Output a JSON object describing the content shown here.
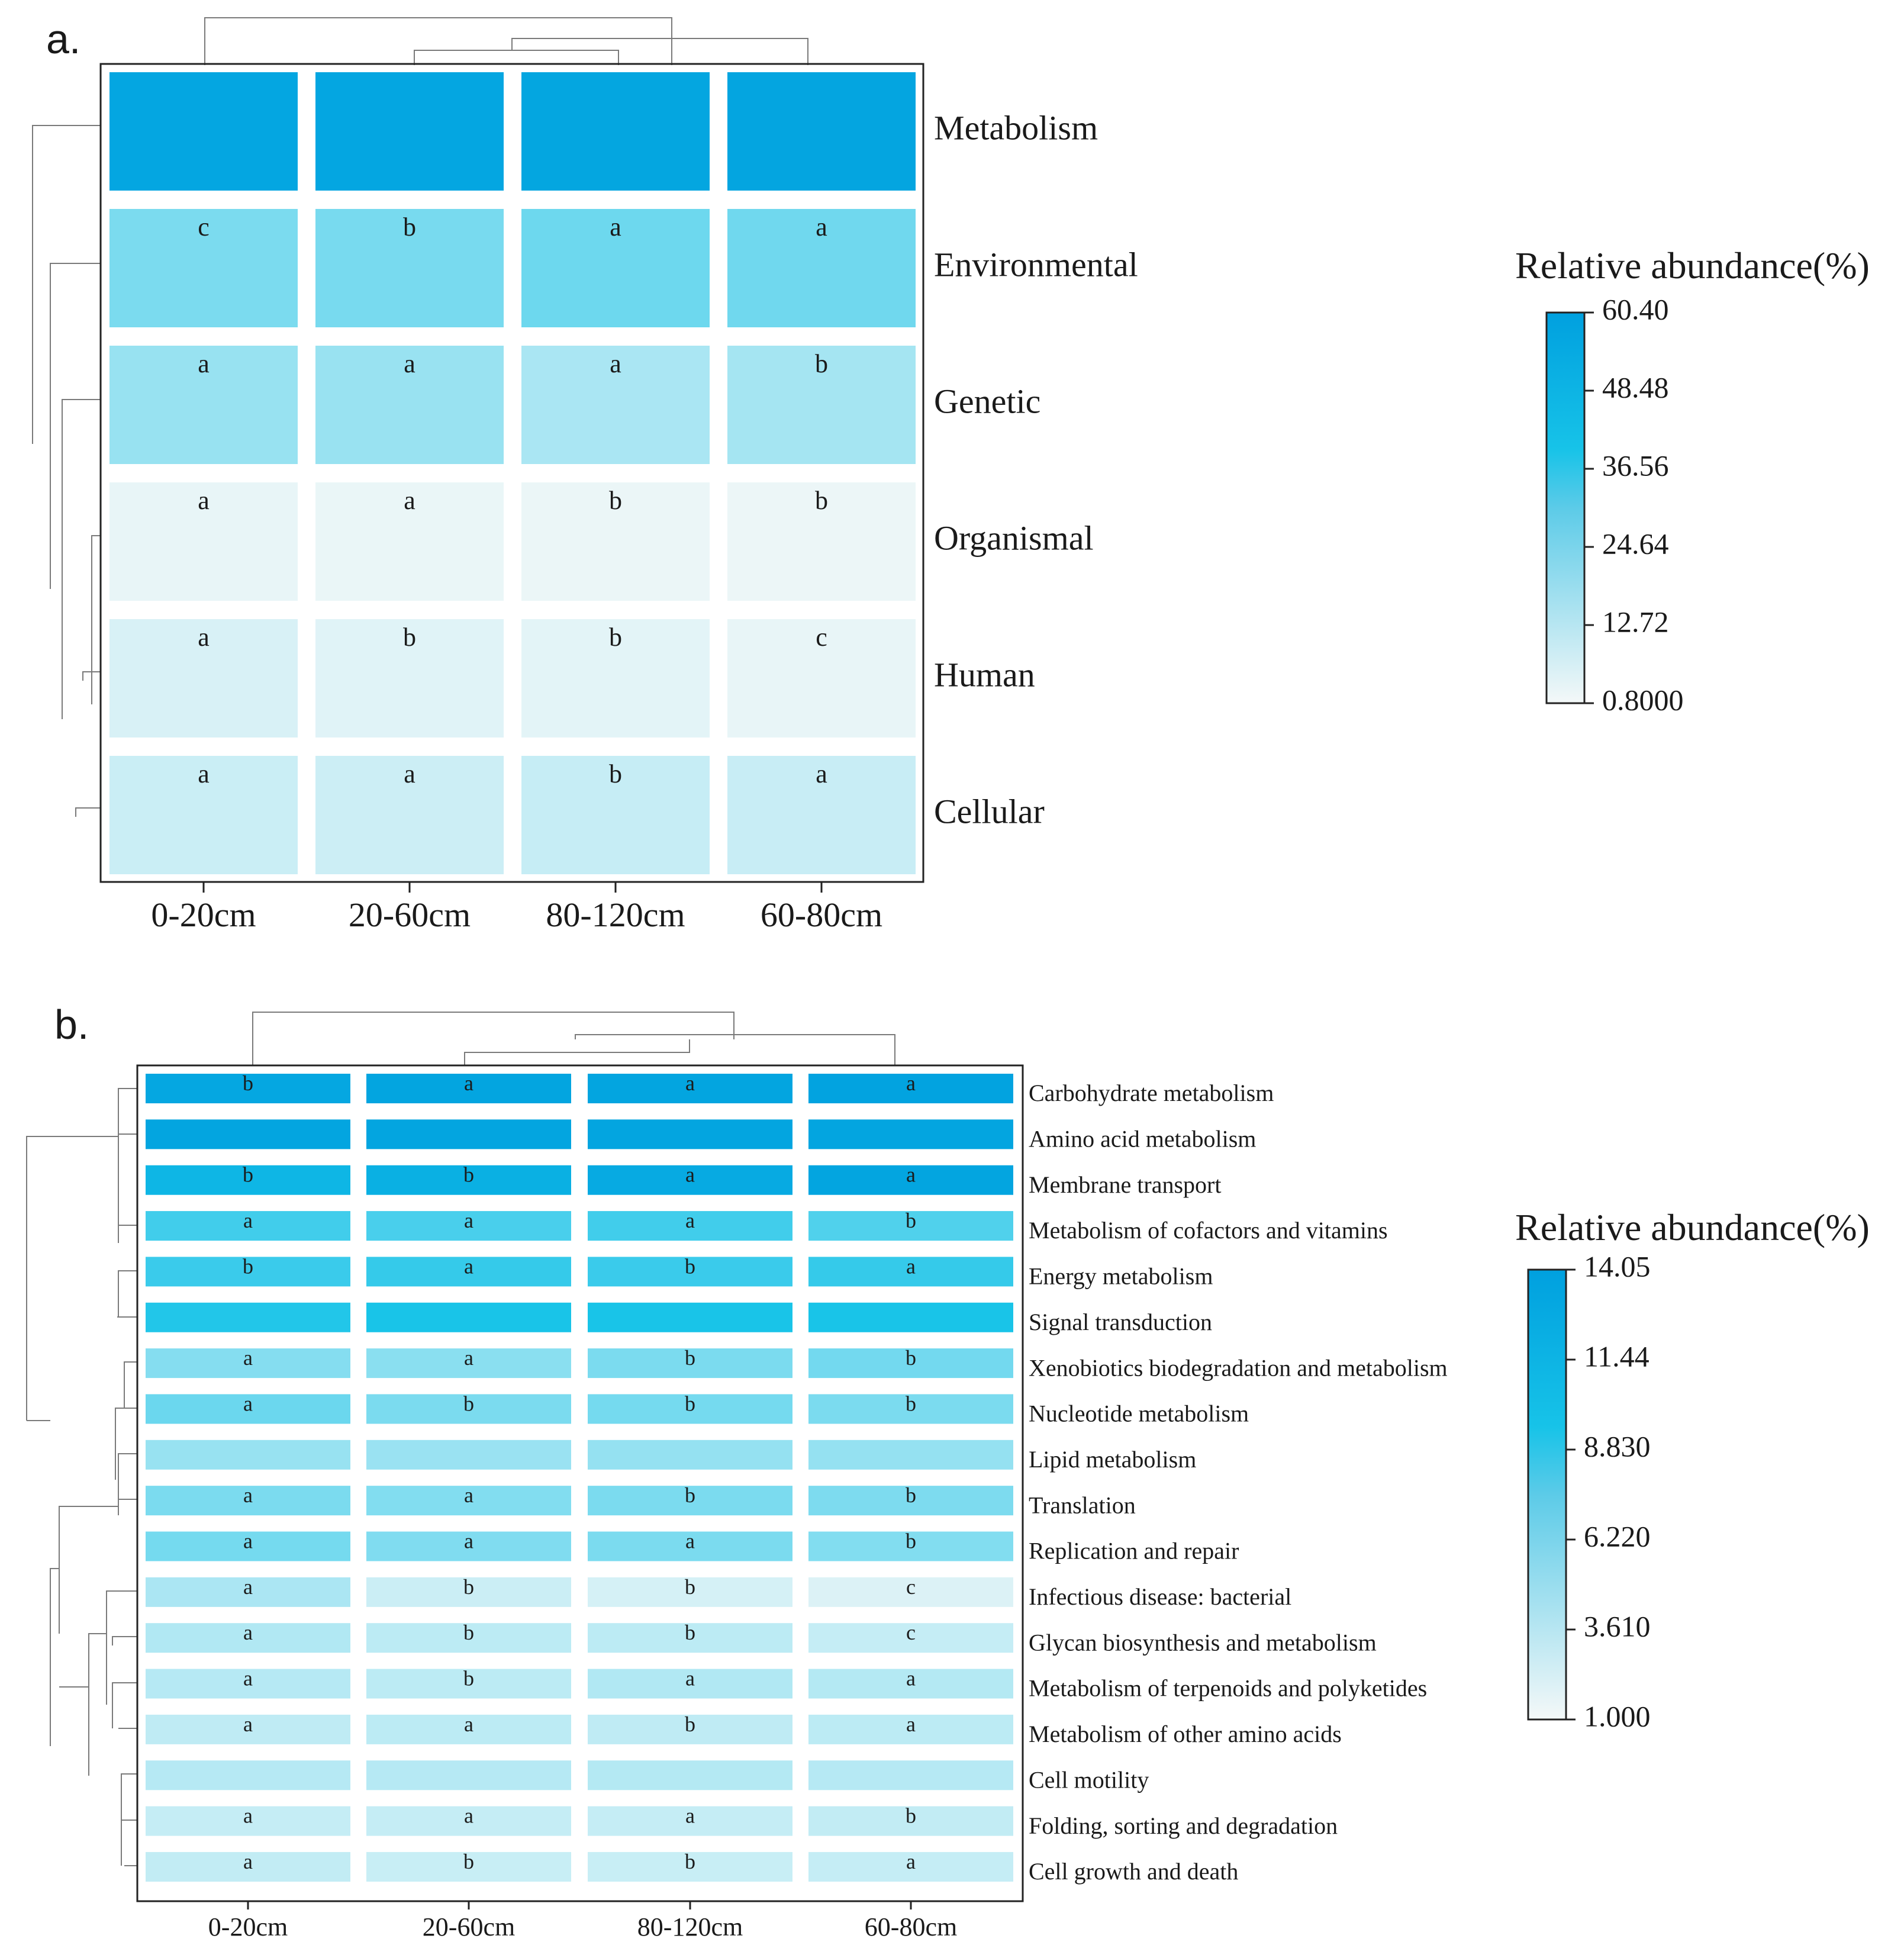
{
  "chart_data": [
    {
      "panel_label": "a.",
      "type": "heatmap",
      "columns": [
        "0-20cm",
        "20-60cm",
        "80-120cm",
        "60-80cm"
      ],
      "rows": [
        "Metabolism",
        "Environmental",
        "Genetic",
        "Organismal",
        "Human",
        "Cellular"
      ],
      "values": [
        [
          56.5,
          56.3,
          56.7,
          56.9
        ],
        [
          19.0,
          19.5,
          21.5,
          21.0
        ],
        [
          14.0,
          13.8,
          11.0,
          11.8
        ],
        [
          2.0,
          1.8,
          1.6,
          1.5
        ],
        [
          4.0,
          3.0,
          2.6,
          2.0
        ],
        [
          6.0,
          5.7,
          6.6,
          6.4
        ]
      ],
      "letters": [
        [
          "",
          "",
          "",
          ""
        ],
        [
          "c",
          "b",
          "a",
          "a"
        ],
        [
          "a",
          "a",
          "a",
          "b"
        ],
        [
          "a",
          "a",
          "b",
          "b"
        ],
        [
          "a",
          "b",
          "b",
          "c"
        ],
        [
          "a",
          "a",
          "b",
          "a"
        ]
      ],
      "colorbar": {
        "title": "Relative abundance(%)",
        "min": 0.8,
        "max": 60.4,
        "tick_labels": [
          "60.40",
          "48.48",
          "36.56",
          "24.64",
          "12.72",
          "0.8000"
        ]
      },
      "colors": {
        "high": "#00a0df",
        "mid": "#17c3e8",
        "low": "#f4f8f8"
      }
    },
    {
      "panel_label": "b.",
      "type": "heatmap",
      "columns": [
        "0-20cm",
        "20-60cm",
        "80-120cm",
        "60-80cm"
      ],
      "rows": [
        "Carbohydrate metabolism",
        "Amino acid metabolism",
        "Membrane transport",
        "Metabolism of cofactors and vitamins",
        "Energy metabolism",
        "Signal transduction",
        "Xenobiotics biodegradation and metabolism",
        "Nucleotide metabolism",
        "Lipid metabolism",
        "Translation",
        "Replication and repair",
        "Infectious disease: bacterial",
        "Glycan biosynthesis and metabolism",
        "Metabolism of terpenoids and polyketides",
        "Metabolism of other amino acids",
        "Cell motility",
        "Folding, sorting and degradation",
        "Cell growth and death"
      ],
      "values": [
        [
          13.0,
          13.3,
          13.4,
          13.6
        ],
        [
          13.3,
          13.3,
          13.3,
          13.3
        ],
        [
          11.0,
          11.8,
          12.6,
          13.4
        ],
        [
          7.3,
          7.0,
          7.3,
          6.7
        ],
        [
          7.6,
          7.8,
          7.6,
          7.8
        ],
        [
          8.6,
          9.0,
          9.0,
          9.0
        ],
        [
          4.6,
          4.4,
          5.0,
          5.3
        ],
        [
          5.6,
          5.0,
          5.2,
          5.0
        ],
        [
          3.9,
          3.8,
          4.0,
          4.0
        ],
        [
          5.0,
          4.7,
          5.0,
          4.9
        ],
        [
          5.2,
          4.8,
          5.0,
          4.7
        ],
        [
          3.2,
          2.1,
          1.8,
          1.6
        ],
        [
          3.0,
          2.6,
          2.6,
          2.3
        ],
        [
          2.8,
          2.6,
          3.0,
          2.9
        ],
        [
          2.5,
          2.6,
          2.5,
          2.6
        ],
        [
          2.8,
          2.8,
          2.9,
          2.8
        ],
        [
          2.3,
          2.3,
          2.3,
          2.4
        ],
        [
          2.4,
          2.2,
          2.2,
          2.3
        ]
      ],
      "letters": [
        [
          "b",
          "a",
          "a",
          "a"
        ],
        [
          "",
          "",
          "",
          ""
        ],
        [
          "b",
          "b",
          "a",
          "a"
        ],
        [
          "a",
          "a",
          "a",
          "b"
        ],
        [
          "b",
          "a",
          "b",
          "a"
        ],
        [
          "",
          "",
          "",
          ""
        ],
        [
          "a",
          "a",
          "b",
          "b"
        ],
        [
          "a",
          "b",
          "b",
          "b"
        ],
        [
          "",
          "",
          "",
          ""
        ],
        [
          "a",
          "a",
          "b",
          "b"
        ],
        [
          "a",
          "a",
          "a",
          "b"
        ],
        [
          "a",
          "b",
          "b",
          "c"
        ],
        [
          "a",
          "b",
          "b",
          "c"
        ],
        [
          "a",
          "b",
          "a",
          "a"
        ],
        [
          "a",
          "a",
          "b",
          "a"
        ],
        [
          "",
          "",
          "",
          ""
        ],
        [
          "a",
          "a",
          "a",
          "b"
        ],
        [
          "a",
          "b",
          "b",
          "a"
        ]
      ],
      "colorbar": {
        "title": "Relative abundance(%)",
        "min": 1.0,
        "max": 14.05,
        "tick_labels": [
          "14.05",
          "11.44",
          "8.830",
          "6.220",
          "3.610",
          "1.000"
        ]
      },
      "colors": {
        "high": "#00a0df",
        "mid": "#17c3e8",
        "low": "#f4f8f8"
      }
    }
  ]
}
